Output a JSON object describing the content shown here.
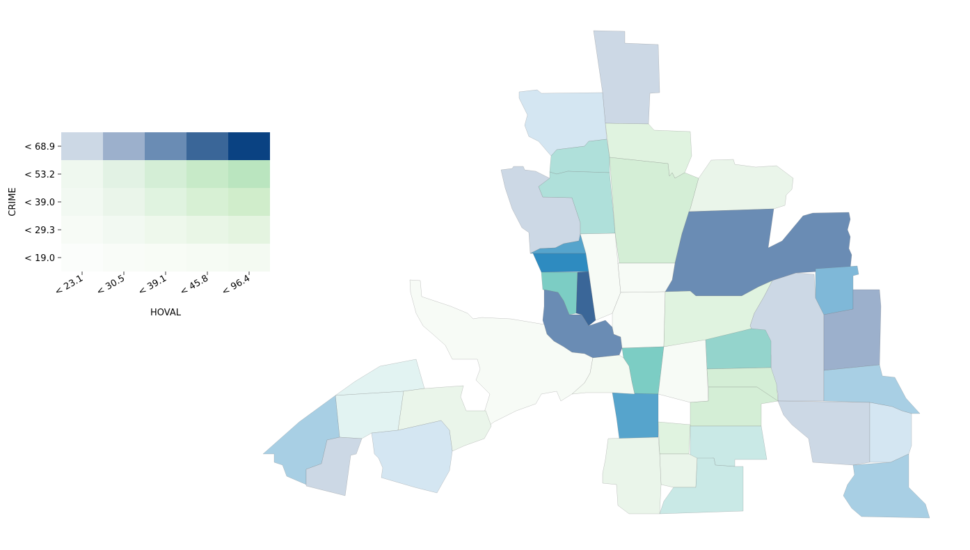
{
  "legend": {
    "x_axis_label": "HOVAL",
    "y_axis_label": "CRIME",
    "x_ticks": [
      "< 23.1",
      "< 30.5",
      "< 39.1",
      "< 45.8",
      "< 96.4"
    ],
    "y_ticks": [
      "< 68.9",
      "< 53.2",
      "< 39.0",
      "< 29.3",
      "< 19.0"
    ],
    "cell_colors": [
      [
        "#ccd8e5",
        "#9cb0cc",
        "#6a8cb4",
        "#3a6698",
        "#0a4282"
      ],
      [
        "#eff8ef",
        "#e2f2e4",
        "#d4eed6",
        "#c7eac8",
        "#bae5bf"
      ],
      [
        "#f2f9f2",
        "#eaf5ea",
        "#e0f3e0",
        "#d7f0d4",
        "#d0edcb"
      ],
      [
        "#f7fbf6",
        "#f2f9f2",
        "#eef8ec",
        "#e9f6e6",
        "#e4f4e0"
      ],
      [
        "#fbfdfb",
        "#f9fcf8",
        "#f8fcf6",
        "#f6fbf4",
        "#f4faf2"
      ]
    ]
  },
  "map": {
    "tracts": [
      {
        "name": "tract-north-top",
        "fill": "#ccd8e5"
      },
      {
        "name": "tract-north-west",
        "fill": "#d4e6f2"
      },
      {
        "name": "tract-north-center",
        "fill": "#e0f3e0"
      },
      {
        "name": "tract-north-small-teal",
        "fill": "#afe0da"
      },
      {
        "name": "tract-west-gray",
        "fill": "#ccd8e5"
      },
      {
        "name": "tract-west-teal",
        "fill": "#afe0da"
      },
      {
        "name": "tract-center-green",
        "fill": "#d4eed6"
      },
      {
        "name": "tract-northeast-pale",
        "fill": "#eaf5ea"
      },
      {
        "name": "tract-east-blue",
        "fill": "#6a8cb4"
      },
      {
        "name": "tract-small-blue",
        "fill": "#56a4cc"
      },
      {
        "name": "tract-bright-blue",
        "fill": "#2e8bc0"
      },
      {
        "name": "tract-small-teal",
        "fill": "#7ccdc4"
      },
      {
        "name": "tract-dark-blue",
        "fill": "#3a6698"
      },
      {
        "name": "tract-hook-blue",
        "fill": "#6a8cb4"
      },
      {
        "name": "tract-narrow-pale",
        "fill": "#f7fbf6"
      },
      {
        "name": "tract-center-pale",
        "fill": "#f7fbf6"
      },
      {
        "name": "tract-center-pale-2",
        "fill": "#f7fbf6"
      },
      {
        "name": "tract-east-pale-green",
        "fill": "#e0f3e0"
      },
      {
        "name": "tract-east-gray",
        "fill": "#ccd8e5"
      },
      {
        "name": "tract-east-blue-small",
        "fill": "#7fb8d8"
      },
      {
        "name": "tract-far-east-blue",
        "fill": "#9cb0cc"
      },
      {
        "name": "tract-east-teal",
        "fill": "#94d4cc"
      },
      {
        "name": "tract-center-teal",
        "fill": "#7ccdc4"
      },
      {
        "name": "tract-center-south-pale",
        "fill": "#f7fbf6"
      },
      {
        "name": "tract-southeast-green",
        "fill": "#d4eed6"
      },
      {
        "name": "tract-southeast-green-2",
        "fill": "#d4eed6"
      },
      {
        "name": "tract-southeast-light-blue",
        "fill": "#a8cfe4"
      },
      {
        "name": "tract-southeast-gray",
        "fill": "#ccd8e5"
      },
      {
        "name": "tract-southeast-pale-blue",
        "fill": "#d4e6f2"
      },
      {
        "name": "tract-far-southeast-blue",
        "fill": "#a8cfe4"
      },
      {
        "name": "tract-south-blue",
        "fill": "#56a4cc"
      },
      {
        "name": "tract-south-pale",
        "fill": "#e0f3e0"
      },
      {
        "name": "tract-south-teal",
        "fill": "#c9e9e6"
      },
      {
        "name": "tract-south-pale-2",
        "fill": "#eaf5ea"
      },
      {
        "name": "tract-south-teal-2",
        "fill": "#c9e9e6"
      },
      {
        "name": "tract-south-pale-3",
        "fill": "#eaf5ea"
      },
      {
        "name": "tract-central-big-pale",
        "fill": "#f7fbf6"
      },
      {
        "name": "tract-center-pale-3",
        "fill": "#f4faf2"
      },
      {
        "name": "tract-west-pale-teal",
        "fill": "#e2f3f2"
      },
      {
        "name": "tract-west-pale-teal-2",
        "fill": "#e2f3f2"
      },
      {
        "name": "tract-west-pale-green",
        "fill": "#eaf5ea"
      },
      {
        "name": "tract-west-light-blue",
        "fill": "#a8cfe4"
      },
      {
        "name": "tract-west-gray-south",
        "fill": "#ccd8e5"
      },
      {
        "name": "tract-west-pale-blue",
        "fill": "#d4e6f2"
      }
    ]
  }
}
